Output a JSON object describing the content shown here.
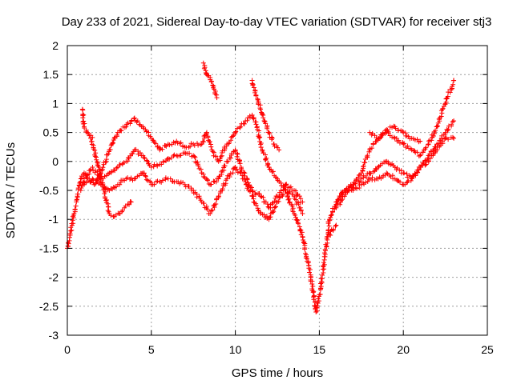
{
  "chart_data": {
    "type": "scatter",
    "title": "Day 233 of 2021, Sidereal Day-to-day VTEC variation (SDTVAR) for receiver stj3",
    "xlabel": "GPS time / hours",
    "ylabel": "SDTVAR / TECUs",
    "xlim": [
      0,
      25
    ],
    "ylim": [
      -3,
      2
    ],
    "x_ticks": [
      0,
      5,
      10,
      15,
      20,
      25
    ],
    "y_ticks": [
      -3,
      -2.5,
      -2,
      -1.5,
      -1,
      -0.5,
      0,
      0.5,
      1,
      1.5,
      2
    ],
    "x_tick_labels": [
      "0",
      "5",
      "10",
      "15",
      "20",
      "25"
    ],
    "y_tick_labels": [
      "-3",
      "-2.5",
      "-2",
      "-1.5",
      "-1",
      "-0.5",
      "0",
      "0.5",
      "1",
      "1.5",
      "2"
    ],
    "grid": true,
    "marker": "plus",
    "color": "#ff0000",
    "series": [
      {
        "x": [
          0.0,
          0.2,
          0.4,
          0.6,
          0.8,
          1.0,
          1.3,
          1.6,
          2.0,
          2.5,
          3.0,
          3.5,
          4.0,
          4.5,
          5.0,
          5.5,
          6.0,
          6.5,
          7.0,
          7.5,
          8.0,
          8.3,
          8.6,
          9.0,
          9.5,
          10.0,
          10.3,
          10.6,
          11.0,
          11.3,
          11.6,
          12.0,
          12.5,
          13.0,
          13.5,
          14.0,
          14.5,
          14.8,
          15.0,
          15.3,
          15.6,
          16.0,
          16.5,
          17.0,
          17.5,
          18.0,
          18.5,
          19.0,
          19.5,
          20.0,
          20.5,
          21.0,
          21.5,
          22.0,
          22.5,
          23.0
        ],
        "y": [
          -1.5,
          -1.2,
          -0.9,
          -0.6,
          -0.3,
          -0.2,
          -0.3,
          -0.4,
          -0.2,
          0.2,
          0.5,
          0.6,
          0.75,
          0.6,
          0.4,
          0.2,
          0.3,
          0.35,
          0.25,
          0.3,
          0.3,
          0.5,
          0.2,
          0.0,
          0.3,
          0.5,
          0.6,
          0.7,
          0.8,
          0.6,
          0.2,
          -0.1,
          -0.3,
          -0.5,
          -0.9,
          -1.3,
          -2.0,
          -2.6,
          -2.3,
          -1.7,
          -1.0,
          -0.7,
          -0.5,
          -0.4,
          -0.2,
          0.2,
          0.4,
          0.5,
          0.4,
          0.3,
          0.2,
          0.1,
          0.3,
          0.6,
          1.0,
          1.4
        ]
      },
      {
        "x": [
          0.8,
          1.0,
          1.5,
          2.0,
          2.5,
          3.0,
          3.5,
          4.0,
          4.5,
          5.0,
          5.5,
          6.0,
          6.5,
          7.0,
          7.5,
          8.0,
          8.5,
          9.0,
          9.5,
          10.0,
          10.5,
          11.0,
          11.5,
          12.0,
          12.5,
          13.0,
          13.5,
          14.0,
          16.0,
          16.5,
          17.0,
          17.5,
          18.0,
          18.5,
          19.0,
          19.5,
          20.0,
          20.5,
          21.0,
          21.5,
          22.0,
          22.5,
          23.0
        ],
        "y": [
          -0.5,
          -0.3,
          -0.1,
          -0.3,
          -0.2,
          -0.1,
          0.0,
          0.2,
          0.1,
          -0.1,
          -0.05,
          0.05,
          0.1,
          0.15,
          0.1,
          -0.2,
          -0.4,
          -0.3,
          0.0,
          0.2,
          -0.2,
          -0.5,
          -0.6,
          -0.8,
          -0.6,
          -0.4,
          -0.5,
          -0.7,
          -0.8,
          -0.6,
          -0.4,
          -0.3,
          -0.2,
          -0.1,
          0.0,
          -0.1,
          -0.2,
          -0.3,
          -0.1,
          0.1,
          0.3,
          0.5,
          0.7
        ]
      },
      {
        "x": [
          1.0,
          1.5,
          2.0,
          2.5,
          3.0,
          3.5,
          4.0,
          4.5,
          5.0,
          5.5,
          6.0,
          6.5,
          7.0,
          7.5,
          8.0,
          8.5,
          9.0,
          9.5,
          10.0,
          10.5,
          11.0,
          11.5,
          12.0,
          12.5,
          13.0,
          13.5,
          14.0,
          16.0,
          16.5,
          17.0,
          17.5,
          18.0,
          18.5,
          19.0,
          19.5,
          20.0,
          20.5,
          21.0,
          21.5,
          22.0,
          22.5,
          23.0
        ],
        "y": [
          -0.4,
          -0.3,
          -0.4,
          -0.5,
          -0.4,
          -0.3,
          -0.3,
          -0.2,
          -0.4,
          -0.35,
          -0.3,
          -0.35,
          -0.4,
          -0.5,
          -0.7,
          -0.9,
          -0.6,
          -0.3,
          -0.1,
          -0.3,
          -0.6,
          -0.9,
          -1.0,
          -0.7,
          -0.5,
          -0.6,
          -0.9,
          -0.7,
          -0.5,
          -0.5,
          -0.4,
          -0.3,
          -0.3,
          -0.2,
          -0.3,
          -0.4,
          -0.3,
          -0.1,
          0.0,
          0.2,
          0.4,
          0.4
        ]
      },
      {
        "x": [
          0.9,
          1.0,
          1.2,
          1.4,
          2.5,
          2.8,
          3.1,
          3.4,
          3.8,
          8.1,
          8.3,
          8.5,
          8.7,
          8.9,
          11.0,
          11.5,
          12.0,
          12.3,
          12.6,
          15.5,
          16.0,
          18.0,
          18.3,
          18.6,
          19.0,
          19.5,
          20.0,
          20.5,
          21.0
        ],
        "y": [
          0.9,
          0.6,
          0.5,
          0.45,
          -0.9,
          -0.95,
          -0.9,
          -0.8,
          -0.7,
          1.7,
          1.5,
          1.45,
          1.3,
          1.1,
          1.4,
          0.9,
          0.5,
          0.3,
          0.2,
          -1.3,
          -1.1,
          0.5,
          0.45,
          0.4,
          0.55,
          0.6,
          0.5,
          0.4,
          0.35
        ]
      }
    ]
  }
}
